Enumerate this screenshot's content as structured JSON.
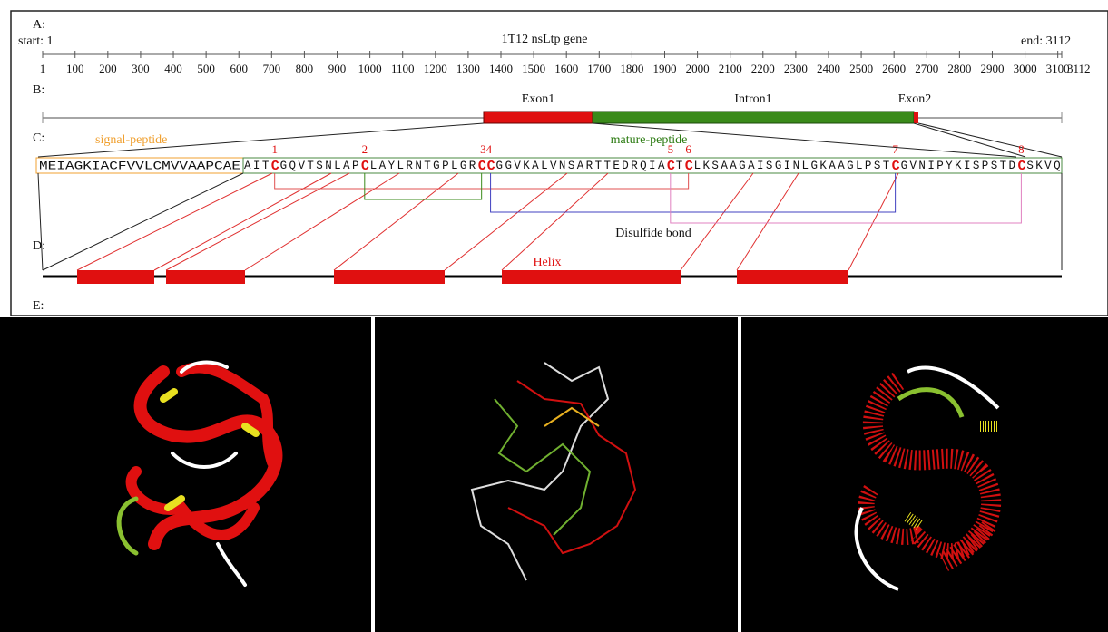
{
  "panels": {
    "a": {
      "label": "A:",
      "start": "start: 1",
      "title": "1T12 nsLtp gene",
      "end": "end: 3112",
      "ruler": {
        "range": [
          1,
          3112
        ],
        "ticks": [
          1,
          100,
          200,
          300,
          400,
          500,
          600,
          700,
          800,
          900,
          1000,
          1100,
          1200,
          1300,
          1400,
          1500,
          1600,
          1700,
          1800,
          1900,
          2000,
          2100,
          2200,
          2300,
          2400,
          2500,
          2600,
          2700,
          2800,
          2900,
          3000,
          3100,
          3112
        ]
      }
    },
    "b": {
      "label": "B:",
      "exon1": "Exon1",
      "intron1": "Intron1",
      "exon2": "Exon2"
    },
    "c": {
      "label": "C:",
      "signal_peptide": "signal-peptide",
      "mature_peptide": "mature-peptide",
      "signal_sequence": "MEIAGKIACFVVLCMVVAAPCAE",
      "mature_sequence": "AITCGQVTSNLAPCLAYLRNTGPLGRCCGGVKALVNSARTTEDRQIACTCLKSAAGAISGINLGKAAGLPSTCGVNIPYKISPSTDCSKVQ",
      "cysteine_labels": [
        "1",
        "2",
        "34",
        "5",
        "6",
        "7",
        "8"
      ],
      "disulfide": "Disulfide bond"
    },
    "d": {
      "label": "D:",
      "helix": "Helix"
    },
    "e": {
      "label": "E:"
    }
  }
}
